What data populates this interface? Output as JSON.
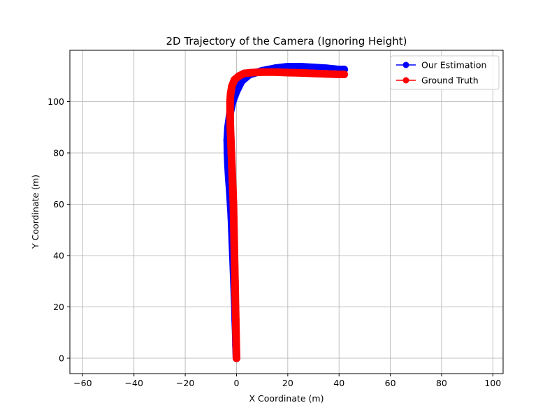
{
  "chart_data": {
    "type": "line",
    "title": "2D Trajectory of the Camera (Ignoring Height)",
    "xlabel": "X Coordinate (m)",
    "ylabel": "Y Coordinate (m)",
    "xlim": [
      -65,
      104
    ],
    "ylim": [
      -6,
      120
    ],
    "xticks": [
      -60,
      -40,
      -20,
      0,
      20,
      40,
      60,
      80,
      100
    ],
    "yticks": [
      0,
      20,
      40,
      60,
      80,
      100
    ],
    "grid": true,
    "legend": "upper right",
    "series": [
      {
        "name": "Our Estimation",
        "color": "#0000ff",
        "marker": "o",
        "x": [
          0,
          -0.2,
          -0.3,
          -0.5,
          -0.6,
          -0.8,
          -1.0,
          -1.2,
          -1.4,
          -1.6,
          -1.8,
          -2.0,
          -2.3,
          -2.6,
          -3.0,
          -3.3,
          -3.5,
          -3.6,
          -3.3,
          -2.6,
          -1.5,
          0,
          2,
          5,
          10,
          15,
          20,
          25,
          30,
          35,
          40,
          42
        ],
        "y": [
          0,
          5,
          10,
          15,
          20,
          25,
          30,
          35,
          40,
          45,
          50,
          55,
          60,
          65,
          70,
          75,
          80,
          85,
          90,
          95,
          100,
          104,
          108,
          110.5,
          112,
          113,
          113.6,
          113.6,
          113.3,
          113,
          112.5,
          112.5
        ]
      },
      {
        "name": "Ground Truth",
        "color": "#ff0000",
        "marker": "o",
        "x": [
          0,
          -0.1,
          -0.2,
          -0.3,
          -0.4,
          -0.5,
          -0.6,
          -0.7,
          -0.8,
          -0.9,
          -1.0,
          -1.1,
          -1.2,
          -1.4,
          -1.6,
          -1.8,
          -2.0,
          -2.2,
          -2.4,
          -2.5,
          -2.5,
          -2.3,
          -1.8,
          -0.8,
          1,
          3,
          6,
          10,
          15,
          20,
          25,
          30,
          35,
          40,
          42
        ],
        "y": [
          0,
          5,
          10,
          15,
          20,
          25,
          30,
          35,
          40,
          45,
          50,
          55,
          60,
          65,
          70,
          75,
          80,
          85,
          90,
          95,
          100,
          103,
          106,
          108.5,
          110,
          111,
          111.3,
          111.5,
          111.5,
          111.3,
          111.2,
          111,
          110.8,
          110.6,
          110.6
        ]
      }
    ]
  }
}
